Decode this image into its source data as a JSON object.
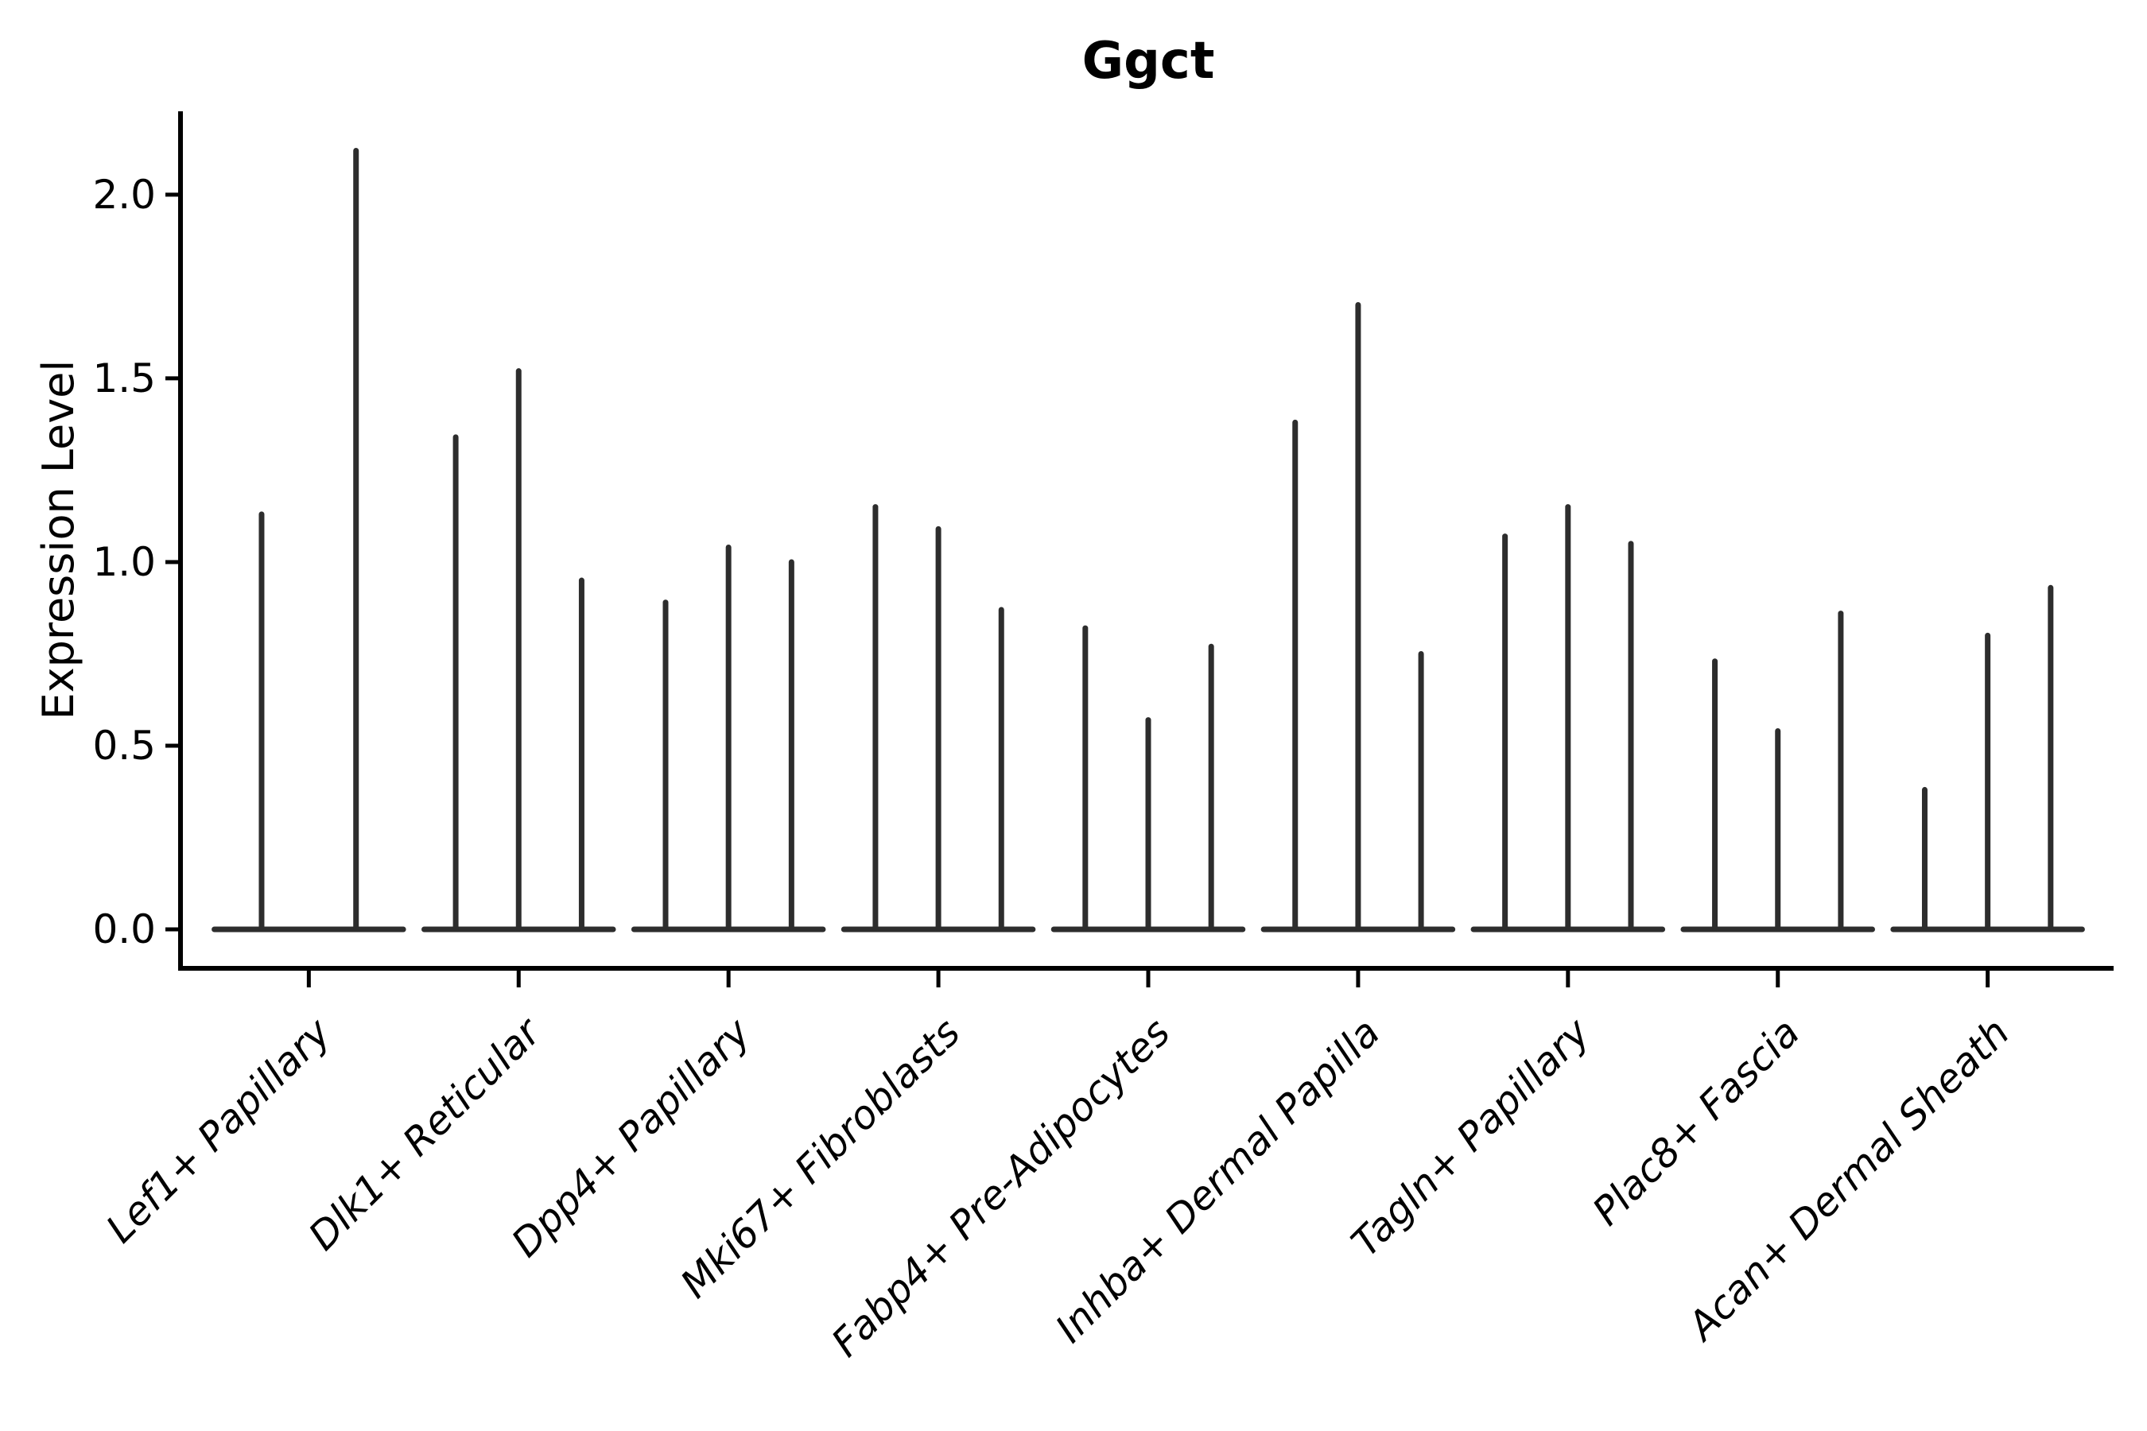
{
  "figure": {
    "title": "Ggct",
    "y_axis_label": "Expression Level"
  },
  "chart_data": {
    "type": "violin",
    "title": "Ggct",
    "xlabel": "",
    "ylabel": "Expression Level",
    "legend": "none",
    "grid": false,
    "background": "#ffffff",
    "violin_color": "#2d2d2d",
    "axis_color": "#000000",
    "categories": [
      "Lef1+ Papillary",
      "Dlk1+ Reticular",
      "Dpp4+ Papillary",
      "Mki67+ Fibroblasts",
      "Fabp4+ Pre-Adipocytes",
      "Inhba+ Dermal Papilla",
      "Tagln+ Papillary",
      "Plac8+ Fascia",
      "Acan+ Dermal Sheath"
    ],
    "violin_max_values": [
      [
        1.13,
        2.12
      ],
      [
        1.34,
        1.52,
        0.95
      ],
      [
        0.89,
        1.04,
        1.0
      ],
      [
        1.15,
        1.09,
        0.87
      ],
      [
        0.82,
        0.57,
        0.77
      ],
      [
        1.38,
        1.7,
        0.75
      ],
      [
        1.07,
        1.15,
        1.05
      ],
      [
        0.73,
        0.54,
        0.86
      ],
      [
        0.38,
        0.8,
        0.93
      ]
    ],
    "violin_min_value": 0.0,
    "yticks": [
      0.0,
      0.5,
      1.0,
      1.5,
      2.0
    ],
    "ytick_labels": [
      "0.0",
      "0.5",
      "1.0",
      "1.5",
      "2.0"
    ],
    "ylim": [
      -0.106,
      2.227
    ],
    "x_label_rotation_deg": 45
  }
}
